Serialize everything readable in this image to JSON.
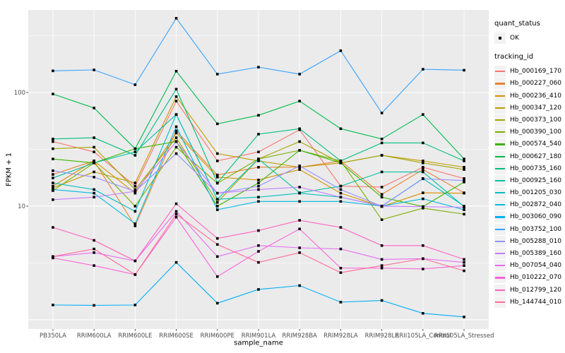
{
  "y_axis": {
    "label": "FPKM + 1",
    "tick_labels": [
      "100",
      "10"
    ]
  },
  "x_axis": {
    "label": "sample_name"
  },
  "legend": {
    "quant_status_title": "quant_status",
    "quant_status_items": [
      {
        "label": "OK",
        "glyph": "black-square-point"
      }
    ],
    "tracking_title": "tracking_id"
  },
  "style": {
    "panel_bg": "#EBEBEB",
    "grid_color": "#FFFFFF",
    "point_color": "#000000",
    "axis_text_color": "#4D4D4D",
    "tick_color": "#333333"
  },
  "chart_data": {
    "type": "line",
    "title": "",
    "xlabel": "sample_name",
    "ylabel": "FPKM + 1",
    "y_scale": "log10",
    "ylim": [
      0.83,
      533
    ],
    "y_ticks_labeled": [
      10,
      100
    ],
    "y_gridlines_major": [
      1,
      10,
      100
    ],
    "y_gridlines_minor": [
      3.162,
      31.62,
      316.2
    ],
    "grid": true,
    "legend_position": "right",
    "point_shape": "filled-square",
    "categories": [
      "PB350LA",
      "RRIM600LA",
      "RRIM600LE",
      "RRIM600SE",
      "RRIM600PE",
      "RRIM901LA",
      "RRIM928BA",
      "RRIM928LA",
      "RRIM928LE",
      "RRII105LA_Control",
      "RRII105LA_Stressed"
    ],
    "series": [
      {
        "name": "Hb_000169_170",
        "color": "#F8766D",
        "quant_status": "OK",
        "values": [
          37,
          30,
          15,
          84,
          25,
          30,
          47,
          15,
          14.7,
          22,
          17.5
        ]
      },
      {
        "name": "Hb_000227_060",
        "color": "#EA8331",
        "quant_status": "OK",
        "values": [
          19,
          25,
          6.7,
          46,
          18.8,
          22,
          22,
          25,
          12.7,
          21,
          13.1
        ]
      },
      {
        "name": "Hb_000236_410",
        "color": "#D89000",
        "quant_status": "OK",
        "values": [
          15,
          25,
          13,
          44,
          18,
          17,
          21,
          13,
          9.9,
          13.1,
          13
        ]
      },
      {
        "name": "Hb_000347_120",
        "color": "#C09B00",
        "quant_status": "OK",
        "values": [
          14.5,
          20,
          16,
          92,
          29,
          25,
          22,
          24,
          28,
          25,
          22
        ]
      },
      {
        "name": "Hb_000373_100",
        "color": "#A3A500",
        "quant_status": "OK",
        "values": [
          32,
          33,
          14,
          40,
          10.8,
          26,
          37,
          24,
          28,
          24,
          21
        ]
      },
      {
        "name": "Hb_000390_100",
        "color": "#7CAE00",
        "quant_status": "OK",
        "values": [
          13.7,
          24,
          10,
          33,
          15.9,
          26,
          31,
          25,
          7.6,
          9.6,
          8.5
        ]
      },
      {
        "name": "Hb_000574_540",
        "color": "#39B600",
        "quant_status": "OK",
        "values": [
          26,
          24,
          32,
          37,
          10,
          16,
          31,
          24,
          12,
          9.9,
          16.3
        ]
      },
      {
        "name": "Hb_000627_180",
        "color": "#00BB4E",
        "quant_status": "OK",
        "values": [
          97,
          73,
          32,
          154,
          53,
          63,
          84,
          48,
          39,
          64,
          26
        ]
      },
      {
        "name": "Hb_000735_160",
        "color": "#00BF7D",
        "quant_status": "OK",
        "values": [
          39,
          40,
          28,
          107,
          16,
          43,
          48,
          25,
          36,
          36,
          25
        ]
      },
      {
        "name": "Hb_000925_160",
        "color": "#00C1A3",
        "quant_status": "OK",
        "values": [
          17.7,
          24,
          30,
          64,
          11.5,
          26,
          13.1,
          15,
          20,
          20,
          9.9
        ]
      },
      {
        "name": "Hb_001205_030",
        "color": "#00BFC4",
        "quant_status": "OK",
        "values": [
          16,
          14,
          9,
          64,
          11.5,
          12,
          13,
          12,
          10,
          17.5,
          10
        ]
      },
      {
        "name": "Hb_002872_040",
        "color": "#00BAE0",
        "quant_status": "OK",
        "values": [
          14,
          13,
          7,
          50,
          9.3,
          11,
          11,
          11,
          10,
          11.6,
          9.3
        ]
      },
      {
        "name": "Hb_003060_090",
        "color": "#00B0F6",
        "quant_status": "OK",
        "values": [
          1.35,
          1.34,
          1.35,
          3.2,
          1.4,
          1.85,
          2.0,
          1.43,
          1.48,
          1.14,
          1.06
        ]
      },
      {
        "name": "Hb_003752_100",
        "color": "#35A2FF",
        "quant_status": "OK",
        "values": [
          155,
          158,
          117,
          450,
          145,
          167,
          145,
          233,
          66,
          160,
          157
        ]
      },
      {
        "name": "Hb_005288_010",
        "color": "#9590FF",
        "quant_status": "OK",
        "values": [
          20.5,
          18,
          13.5,
          29,
          13,
          15,
          22.6,
          14,
          10,
          17.4,
          16.8
        ]
      },
      {
        "name": "Hb_005389_160",
        "color": "#C77CFF",
        "quant_status": "OK",
        "values": [
          11.4,
          12,
          13.5,
          37,
          13,
          14,
          14.7,
          12,
          10,
          9.9,
          9.8
        ]
      },
      {
        "name": "Hb_007054_040",
        "color": "#E76BF3",
        "quant_status": "OK",
        "values": [
          3.6,
          3.9,
          3.3,
          9.0,
          3.6,
          4.5,
          4.3,
          4.2,
          3.4,
          3.45,
          3.2
        ]
      },
      {
        "name": "Hb_010222_070",
        "color": "#FA62DB",
        "quant_status": "OK",
        "values": [
          3.5,
          3.0,
          2.5,
          8.0,
          2.4,
          4.0,
          6.3,
          2.85,
          2.85,
          2.8,
          3.0
        ]
      },
      {
        "name": "Hb_012799_120",
        "color": "#FF62BC",
        "quant_status": "OK",
        "values": [
          6.5,
          5.0,
          3.3,
          10.5,
          5.2,
          6.1,
          7.5,
          6.5,
          4.5,
          4.5,
          3.4
        ]
      },
      {
        "name": "Hb_144744_010",
        "color": "#FF6A98",
        "quant_status": "OK",
        "values": [
          3.6,
          4.2,
          2.5,
          8.5,
          4.6,
          3.2,
          3.9,
          2.6,
          3.0,
          3.45,
          2.7
        ]
      }
    ]
  }
}
